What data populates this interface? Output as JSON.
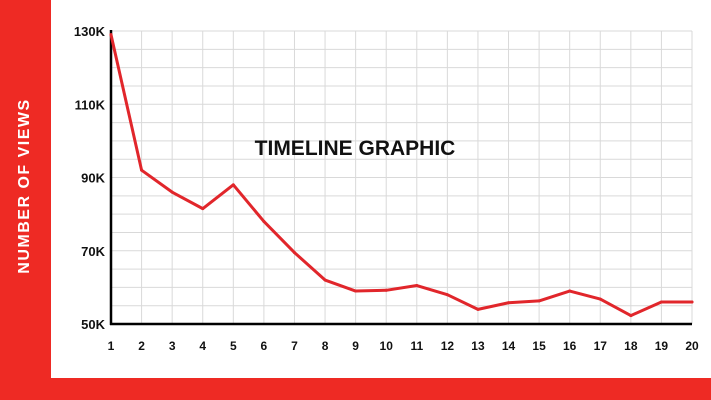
{
  "chart_data": {
    "type": "line",
    "title": "TIMELINE GRAPHIC",
    "xlabel": "",
    "ylabel": "NUMBER OF VIEWS",
    "x": [
      1,
      2,
      3,
      4,
      5,
      6,
      7,
      8,
      9,
      10,
      11,
      12,
      13,
      14,
      15,
      16,
      17,
      18,
      19,
      20
    ],
    "series": [
      {
        "values": [
          129000,
          92000,
          86000,
          81500,
          88000,
          78000,
          69500,
          62000,
          59000,
          59200,
          60500,
          58000,
          54000,
          55800,
          56300,
          59000,
          56800,
          52300,
          56000,
          56000
        ]
      }
    ],
    "ylim": [
      50000,
      130000
    ],
    "yticks": [
      {
        "value": 130000,
        "label": "130K"
      },
      {
        "value": 110000,
        "label": "110K"
      },
      {
        "value": 90000,
        "label": "90K"
      },
      {
        "value": 70000,
        "label": "70K"
      },
      {
        "value": 50000,
        "label": "50K"
      }
    ],
    "xticks": [
      "1",
      "2",
      "3",
      "4",
      "5",
      "6",
      "7",
      "8",
      "9",
      "10",
      "11",
      "12",
      "13",
      "14",
      "15",
      "16",
      "17",
      "18",
      "19",
      "20"
    ],
    "grid": true,
    "line_color": "#e1262b",
    "accent_color": "#ee2a24"
  }
}
